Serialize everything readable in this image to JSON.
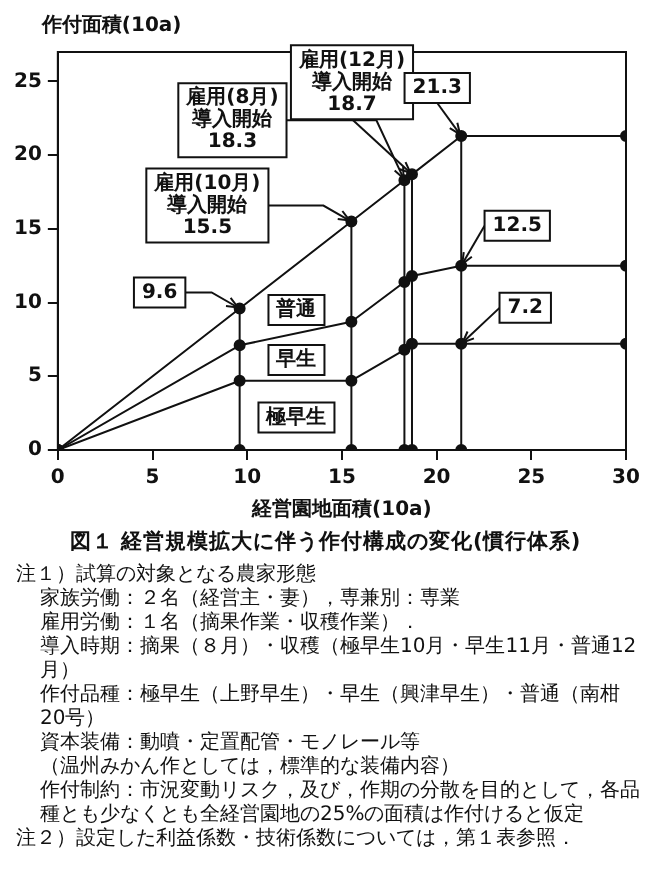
{
  "chart_data": {
    "type": "line",
    "title": "図１ 経営規模拡大に伴う作付構成の変化(慣行体系)",
    "xlabel": "経営園地面積(10a)",
    "ylabel": "作付面積(10a)",
    "xlim": [
      0,
      30
    ],
    "xticks": [
      0,
      5,
      10,
      15,
      20,
      25,
      30
    ],
    "ylim": [
      0,
      27
    ],
    "yticks": [
      0,
      5,
      10,
      15,
      20,
      25
    ],
    "grid": false,
    "legend": false,
    "marker": "circle",
    "line_style": "solid",
    "series": [
      {
        "color": "#111111",
        "x": [
          0,
          9.6,
          15.5,
          18.3,
          18.7,
          21.3,
          30
        ],
        "values": [
          0,
          9.6,
          15.5,
          18.3,
          18.7,
          21.3,
          21.3
        ]
      },
      {
        "color": "#111111",
        "x": [
          0,
          9.6,
          15.5,
          18.3,
          18.7,
          21.3,
          30
        ],
        "values": [
          0,
          7.1,
          8.7,
          11.4,
          11.8,
          12.5,
          12.5
        ]
      },
      {
        "color": "#111111",
        "x": [
          0,
          9.6,
          15.5,
          18.3,
          18.7,
          21.3,
          30
        ],
        "values": [
          0,
          4.7,
          4.7,
          6.8,
          7.2,
          7.2,
          7.2
        ]
      },
      {
        "type": "scatter",
        "color": "#111111",
        "x": [
          9.6,
          15.5,
          18.3,
          18.7,
          21.3
        ],
        "values": [
          0,
          0,
          0,
          0,
          0
        ]
      }
    ],
    "ref_lines": [
      {
        "axis": "x",
        "value": 9.6
      },
      {
        "axis": "x",
        "value": 15.5
      },
      {
        "axis": "x",
        "value": 18.3
      },
      {
        "axis": "x",
        "value": 18.7
      },
      {
        "axis": "x",
        "value": 21.3
      }
    ],
    "annotations": [
      {
        "text": "9.6",
        "x": 9.6,
        "y": 9.6
      },
      {
        "text": "雇用(10月)\n導入開始\n15.5",
        "x": 15.5,
        "y": 15.5
      },
      {
        "text": "雇用(8月)\n導入開始\n18.3",
        "x": 18.3,
        "y": 18.3
      },
      {
        "text": "雇用(12月)\n導入開始\n18.7",
        "x": 18.7,
        "y": 18.7
      },
      {
        "text": "21.3",
        "x": 21.3,
        "y": 21.3
      },
      {
        "text": "12.5",
        "x": 21.3,
        "y": 12.5
      },
      {
        "text": "7.2",
        "x": 21.3,
        "y": 7.2
      },
      {
        "text": "普通",
        "x": 12.6,
        "y": 9.5
      },
      {
        "text": "早生",
        "x": 12.6,
        "y": 6.1
      },
      {
        "text": "極早生",
        "x": 12.6,
        "y": 2.2
      },
      "注１）試算の対象となる農家形態",
      "家族労働：２名（経営主・妻），専兼別：専業",
      "雇用労働：１名（摘果作業・収穫作業）．",
      "導入時期：摘果（８月）・収穫（極早生10月・早生11月・普通12月）",
      "作付品種：極早生（上野早生）・早生（興津早生）・普通（南柑20号）",
      "資本装備：動噴・定置配管・モノレール等",
      "（温州みかん作としては，標準的な装備内容）",
      "作付制約：市況変動リスク，及び，作期の分散を目的として，各品種とも少なくとも全経営園地の25%の面積は作付けると仮定",
      "注２）設定した利益係数・技術係数については，第１表参照．"
    ]
  }
}
